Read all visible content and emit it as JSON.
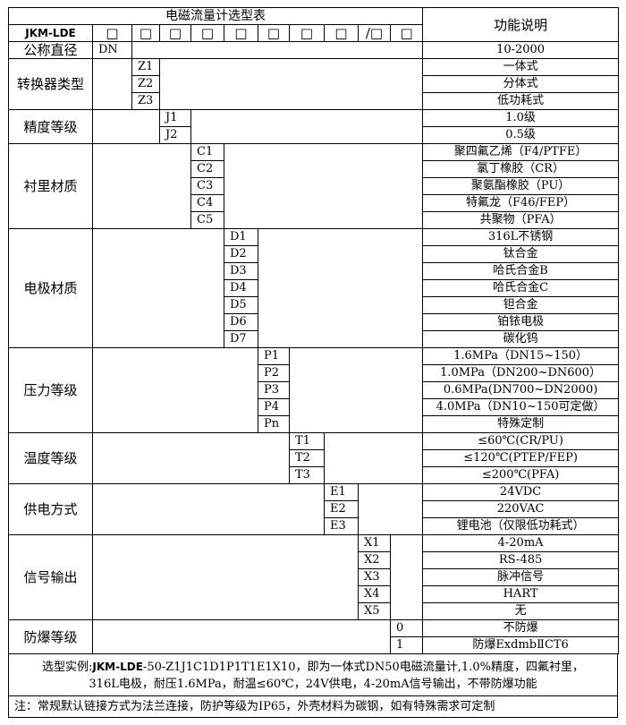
{
  "title": "电磁流量计选型表",
  "function_header": "功能说明",
  "model_prefix": "JKM-LDE",
  "code_boxes": [
    "□",
    "□",
    "□",
    "□",
    "□",
    "□",
    "□",
    "□",
    "/□",
    "□"
  ],
  "groups": [
    {
      "label": "公称直径",
      "col": 1,
      "items": [
        {
          "code": "DN",
          "desc": "10-2000"
        }
      ]
    },
    {
      "label": "转换器类型",
      "col": 2,
      "items": [
        {
          "code": "Z1",
          "desc": "一体式"
        },
        {
          "code": "Z2",
          "desc": "分体式"
        },
        {
          "code": "Z3",
          "desc": "低功耗式"
        }
      ]
    },
    {
      "label": "精度等级",
      "col": 3,
      "items": [
        {
          "code": "J1",
          "desc": "1.0级"
        },
        {
          "code": "J2",
          "desc": "0.5级"
        }
      ]
    },
    {
      "label": "衬里材质",
      "col": 4,
      "items": [
        {
          "code": "C1",
          "desc": "聚四氟乙烯（F4/PTFE）"
        },
        {
          "code": "C2",
          "desc": "氯丁橡胶（CR）"
        },
        {
          "code": "C3",
          "desc": "聚氨酯橡胶（PU）"
        },
        {
          "code": "C4",
          "desc": "特氟龙（F46/FEP）"
        },
        {
          "code": "C5",
          "desc": "共聚物（PFA）"
        }
      ]
    },
    {
      "label": "电极材质",
      "col": 5,
      "items": [
        {
          "code": "D1",
          "desc": "316L不锈钢"
        },
        {
          "code": "D2",
          "desc": "钛合金"
        },
        {
          "code": "D3",
          "desc": "哈氏合金B"
        },
        {
          "code": "D4",
          "desc": "哈氏合金C"
        },
        {
          "code": "D5",
          "desc": "钽合金"
        },
        {
          "code": "D6",
          "desc": "铂铱电极"
        },
        {
          "code": "D7",
          "desc": "碳化钨"
        }
      ]
    },
    {
      "label": "压力等级",
      "col": 6,
      "items": [
        {
          "code": "P1",
          "desc": "1.6MPa（DN15~150）"
        },
        {
          "code": "P2",
          "desc": "1.0MPa（DN200~DN600）"
        },
        {
          "code": "P3",
          "desc": "0.6MPa(DN700~DN2000)"
        },
        {
          "code": "P4",
          "desc": "4.0MPa（DN10~150可定做）"
        },
        {
          "code": "Pn",
          "desc": "特殊定制"
        }
      ]
    },
    {
      "label": "温度等级",
      "col": 7,
      "items": [
        {
          "code": "T1",
          "desc": "≤60℃(CR/PU)"
        },
        {
          "code": "T2",
          "desc": "≤120℃(PTEP/FEP)"
        },
        {
          "code": "T3",
          "desc": "≤200℃(PFA)"
        }
      ]
    },
    {
      "label": "供电方式",
      "col": 8,
      "items": [
        {
          "code": "E1",
          "desc": "24VDC"
        },
        {
          "code": "E2",
          "desc": "220VAC"
        },
        {
          "code": "E3",
          "desc": "锂电池（仅限低功耗式）"
        }
      ]
    },
    {
      "label": "信号输出",
      "col": 9,
      "items": [
        {
          "code": "X1",
          "desc": "4-20mA"
        },
        {
          "code": "X2",
          "desc": "RS-485"
        },
        {
          "code": "X3",
          "desc": "脉冲信号"
        },
        {
          "code": "X4",
          "desc": "HART"
        },
        {
          "code": "X5",
          "desc": "无"
        }
      ]
    },
    {
      "label": "防爆等级",
      "col": 10,
      "items": [
        {
          "code": "0",
          "desc": "不防爆"
        },
        {
          "code": "1",
          "desc": "防爆ExdmbⅡCT6"
        }
      ]
    }
  ],
  "example": {
    "prefix": "选型实例:",
    "model": "JKM-LDE",
    "line1_rest": "-50-Z1J1C1D1P1T1E1X10，即为一体式DN50电磁流量计,1.0%精度，四氟衬里，",
    "line2": "316L电极，耐压1.6MPa，耐温≤60℃，24V供电，4-20mA信号输出，不带防爆功能"
  },
  "note": "注：常规默认链接方式为法兰连接，防护等级为IP65，外壳材料为碳钢，如有特殊需求可定制"
}
